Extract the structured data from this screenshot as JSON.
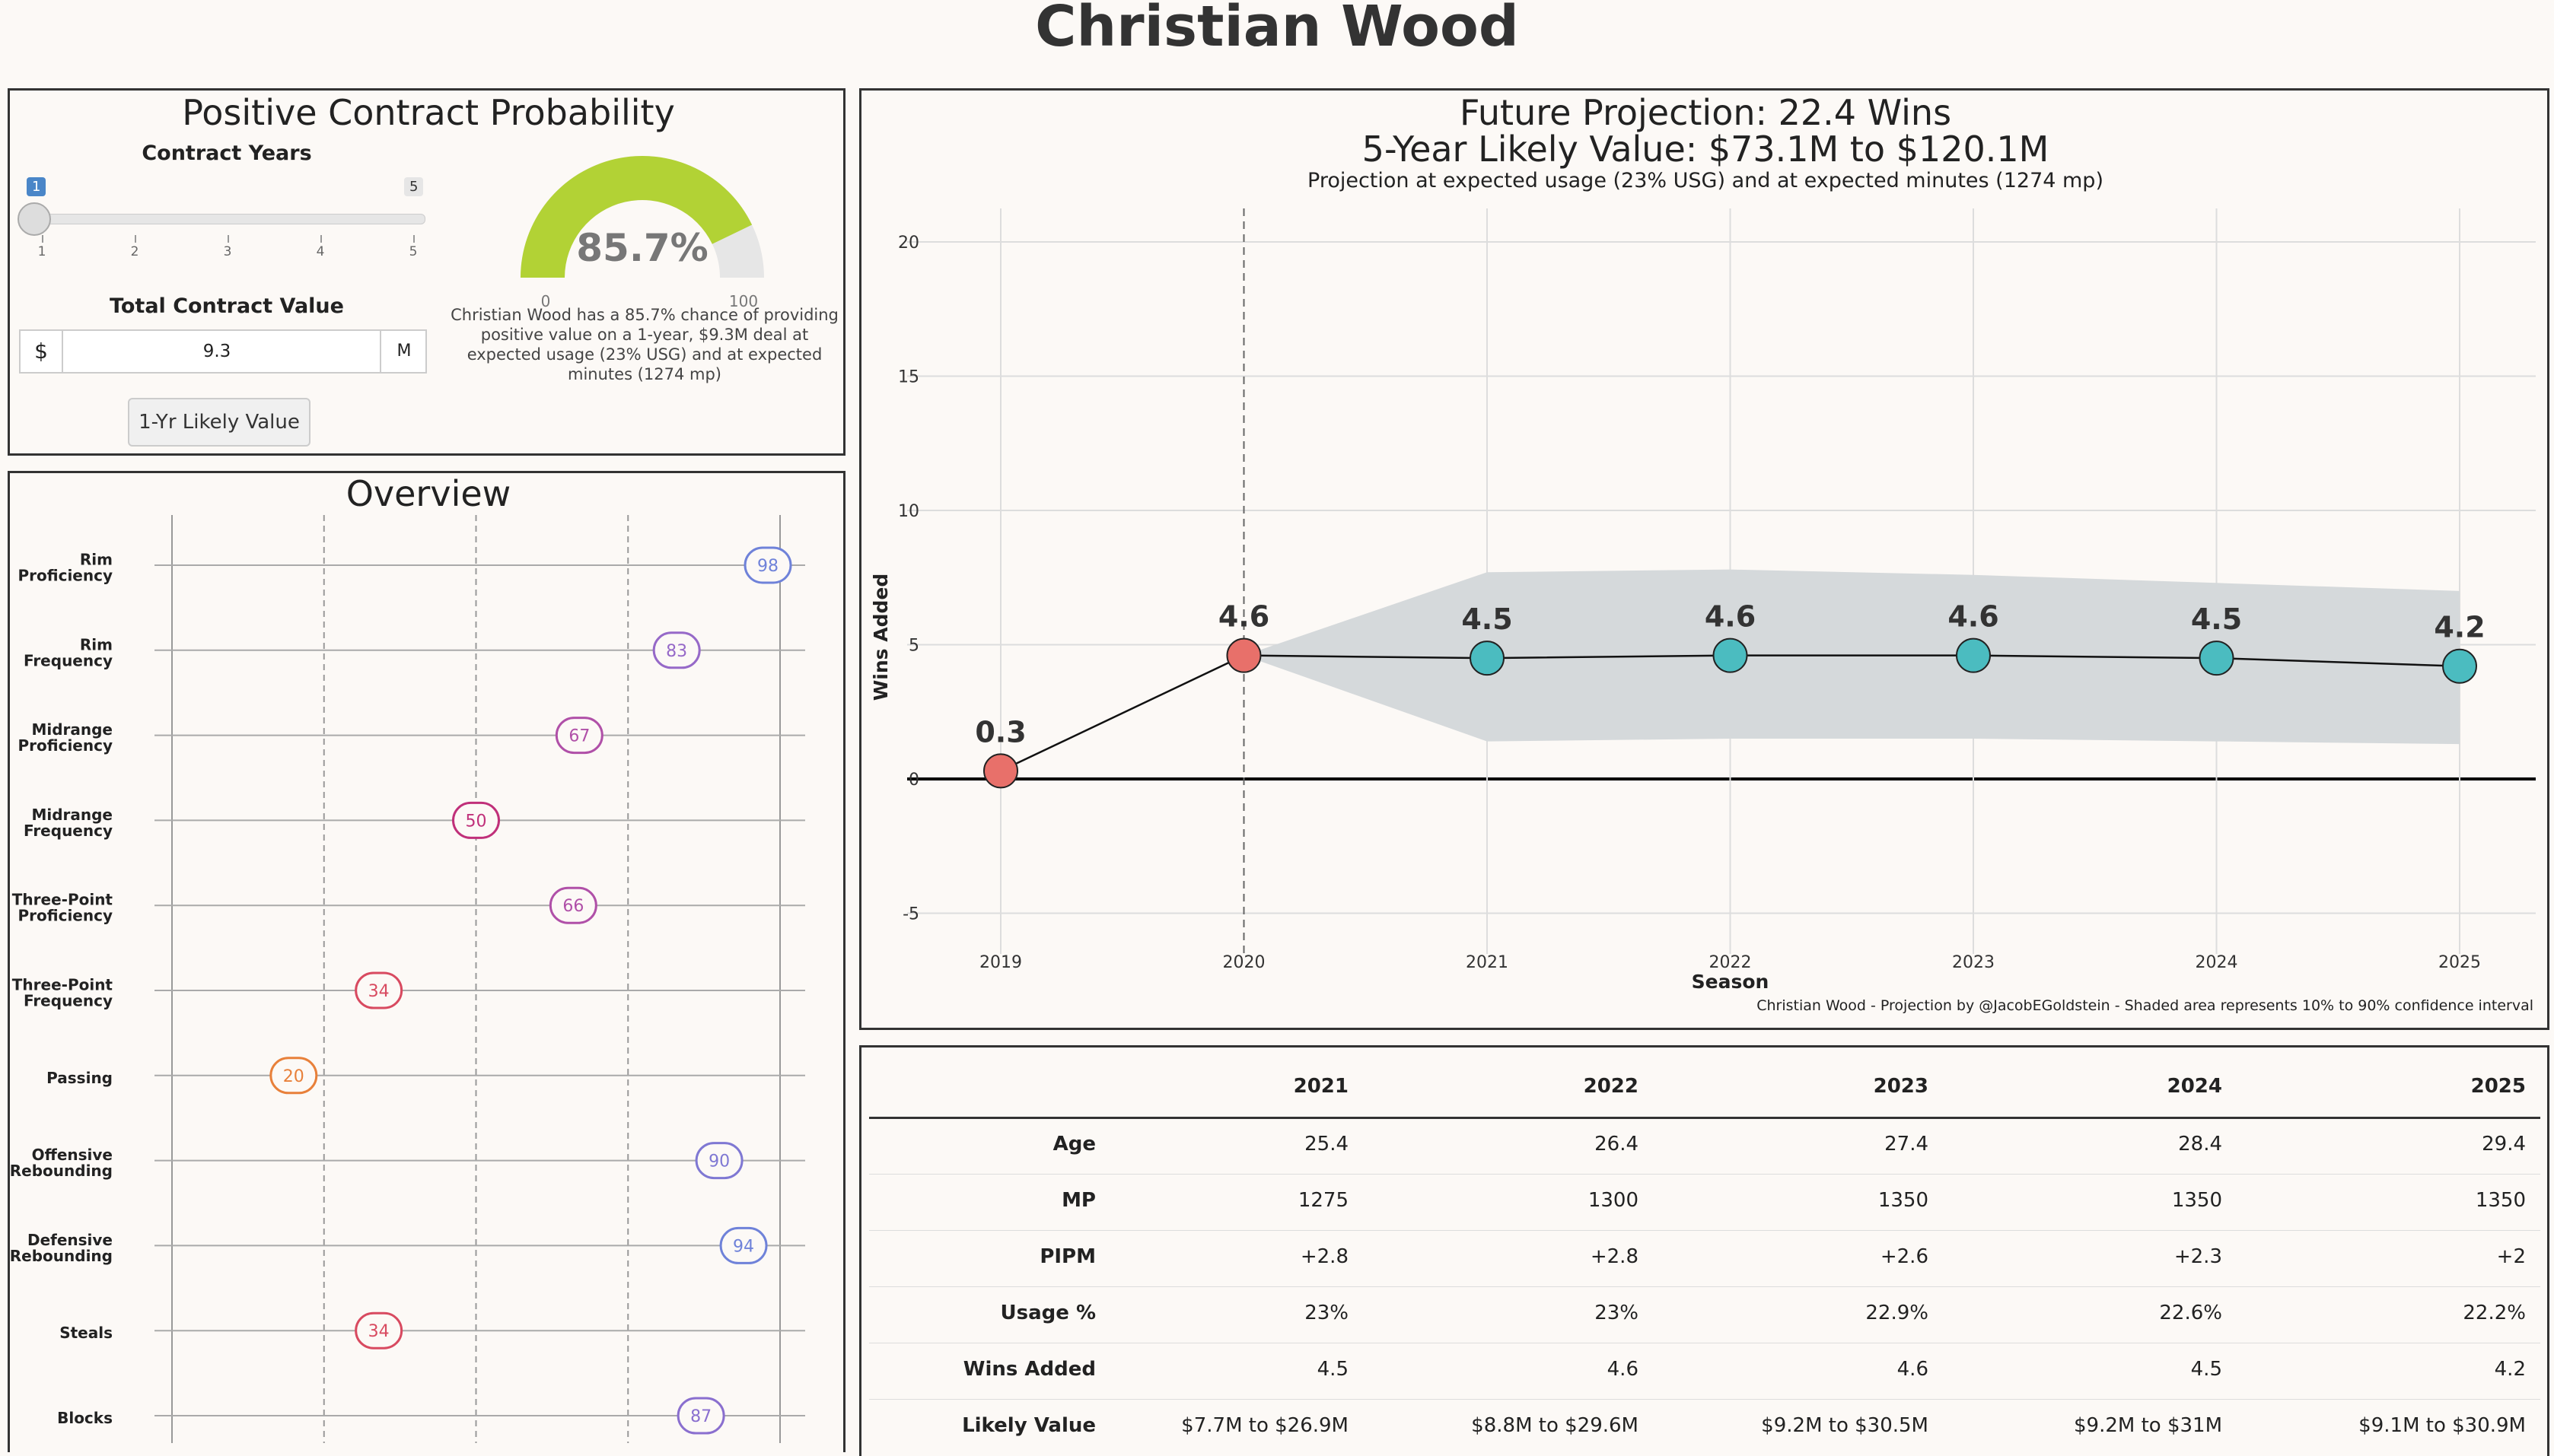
{
  "page": {
    "title": "Christian Wood"
  },
  "contract": {
    "title": "Positive Contract Probability",
    "years_label": "Contract Years",
    "slider": {
      "min": "1",
      "max": "5",
      "ticks": [
        "1",
        "2",
        "3",
        "4",
        "5"
      ]
    },
    "value_label": "Total Contract Value",
    "prefix": "$",
    "value": "9.3",
    "suffix": "M",
    "button_label": "1-Yr Likely Value",
    "gauge": {
      "value": 85.7,
      "value_text": "85.7%",
      "min": "0",
      "max": "100",
      "fill_color": "#b2d235",
      "track_color": "#e6e6e6"
    },
    "description": [
      "Christian Wood has a 85.7% chance of providing",
      "positive value on a 1-year, $9.3M deal at",
      "expected usage (23% USG) and at expected",
      "minutes (1274 mp)"
    ]
  },
  "overview": {
    "title": "Overview",
    "items": [
      {
        "label": [
          "Rim",
          "Proficiency"
        ],
        "value": 98,
        "color": "#6f82d9"
      },
      {
        "label": [
          "Rim",
          "Frequency"
        ],
        "value": 83,
        "color": "#9669c8"
      },
      {
        "label": [
          "Midrange",
          "Proficiency"
        ],
        "value": 67,
        "color": "#b050a8"
      },
      {
        "label": [
          "Midrange",
          "Frequency"
        ],
        "value": 50,
        "color": "#c0307a"
      },
      {
        "label": [
          "Three-Point",
          "Proficiency"
        ],
        "value": 66,
        "color": "#b050a8"
      },
      {
        "label": [
          "Three-Point",
          "Frequency"
        ],
        "value": 34,
        "color": "#d84a60"
      },
      {
        "label": [
          "Passing"
        ],
        "value": 20,
        "color": "#e8803a"
      },
      {
        "label": [
          "Offensive",
          "Rebounding"
        ],
        "value": 90,
        "color": "#7f78d3"
      },
      {
        "label": [
          "Defensive",
          "Rebounding"
        ],
        "value": 94,
        "color": "#6f82d9"
      },
      {
        "label": [
          "Steals"
        ],
        "value": 34,
        "color": "#d84a60"
      },
      {
        "label": [
          "Blocks"
        ],
        "value": 87,
        "color": "#8a6fcf"
      }
    ]
  },
  "projection": {
    "title": "Future Projection: 22.4 Wins",
    "subtitle": "5-Year Likely Value: $73.1M to $120.1M",
    "note": "Projection at expected usage (23% USG) and at expected minutes (1274 mp)",
    "caption": "Christian Wood - Projection by @JacobEGoldstein - Shaded area represents 10% to 90% confidence interval",
    "chart_data": {
      "type": "line",
      "xlabel": "Season",
      "ylabel": "Wins Added",
      "x": [
        2019,
        2020,
        2021,
        2022,
        2023,
        2024,
        2025
      ],
      "ylim": [
        -6.5,
        21
      ],
      "yticks": [
        -5,
        0,
        5,
        10,
        15,
        20
      ],
      "series": [
        {
          "values": [
            0.3,
            4.6,
            4.5,
            4.6,
            4.6,
            4.5,
            4.2
          ],
          "labels": [
            "0.3",
            "4.6",
            "4.5",
            "4.6",
            "4.6",
            "4.5",
            "4.2"
          ]
        }
      ],
      "band": {
        "x": [
          2020,
          2021,
          2022,
          2023,
          2024,
          2025
        ],
        "upper": [
          4.6,
          7.7,
          7.8,
          7.6,
          7.3,
          7.0
        ],
        "lower": [
          4.6,
          1.4,
          1.5,
          1.5,
          1.4,
          1.3
        ]
      },
      "historical_color": "#e8706a",
      "projected_color": "#4bbcc0",
      "band_color": "#d5d9db",
      "grid": true
    }
  },
  "table": {
    "columns": [
      "2021",
      "2022",
      "2023",
      "2024",
      "2025"
    ],
    "rows": [
      {
        "label": "Age",
        "values": [
          "25.4",
          "26.4",
          "27.4",
          "28.4",
          "29.4"
        ]
      },
      {
        "label": "MP",
        "values": [
          "1275",
          "1300",
          "1350",
          "1350",
          "1350"
        ]
      },
      {
        "label": "PIPM",
        "values": [
          "+2.8",
          "+2.8",
          "+2.6",
          "+2.3",
          "+2"
        ]
      },
      {
        "label": "Usage %",
        "values": [
          "23%",
          "23%",
          "22.9%",
          "22.6%",
          "22.2%"
        ]
      },
      {
        "label": "Wins Added",
        "values": [
          "4.5",
          "4.6",
          "4.6",
          "4.5",
          "4.2"
        ]
      },
      {
        "label": "Likely Value",
        "values": [
          "$7.7M to $26.9M",
          "$8.8M to $29.6M",
          "$9.2M to $30.5M",
          "$9.2M to $31M",
          "$9.1M to $30.9M"
        ]
      }
    ]
  }
}
